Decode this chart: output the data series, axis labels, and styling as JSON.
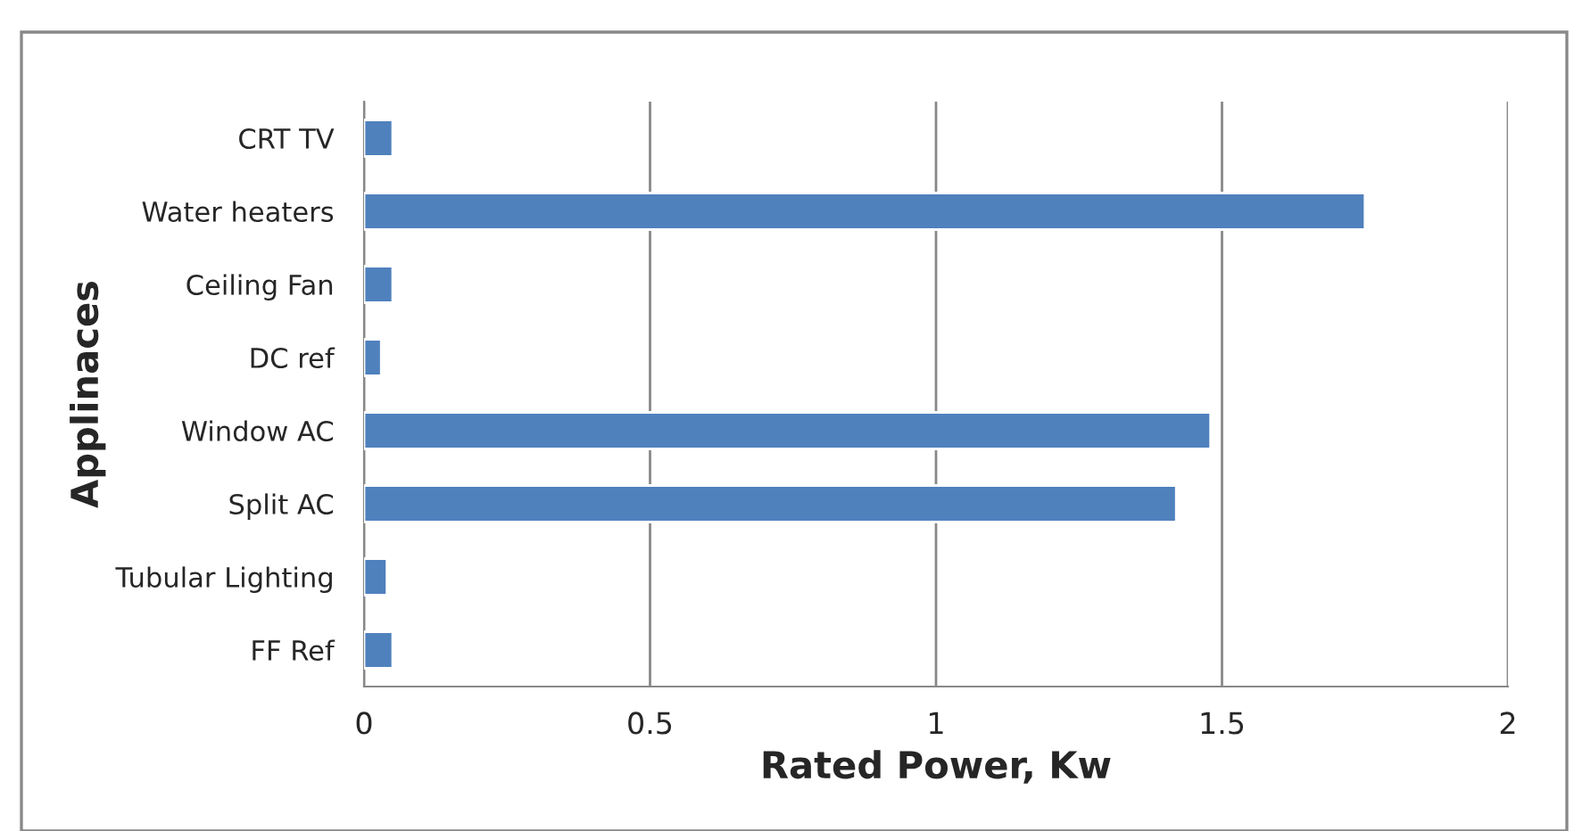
{
  "chart_data": {
    "type": "bar",
    "orientation": "horizontal",
    "xlabel": "Rated Power, Kw",
    "ylabel": "Applinaces",
    "categories": [
      "CRT TV",
      "Water heaters",
      "Ceiling Fan",
      "DC ref",
      "Window AC",
      "Split AC",
      "Tubular Lighting",
      "FF Ref"
    ],
    "values": [
      0.05,
      1.75,
      0.05,
      0.03,
      1.48,
      1.42,
      0.04,
      0.05
    ],
    "color": "#4f81bd",
    "xlim": [
      0,
      2
    ],
    "xticks": [
      0,
      0.5,
      1,
      1.5,
      2
    ],
    "grid": "x",
    "legend": false
  }
}
